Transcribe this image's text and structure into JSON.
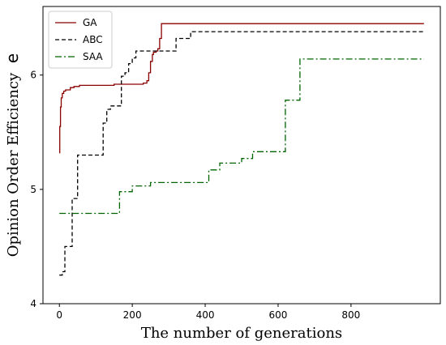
{
  "chart_data": {
    "type": "line",
    "xlabel": "The number of generations",
    "ylabel": "Opinion Order Efficiency",
    "ylabel_symbol": "e",
    "xlim": [
      -45,
      1045
    ],
    "ylim": [
      4.0,
      6.6
    ],
    "xticks": [
      0,
      200,
      400,
      600,
      800
    ],
    "yticks": [
      4,
      5,
      6
    ],
    "legend_position": "upper-left",
    "grid": false,
    "series": [
      {
        "name": "GA",
        "color": "#8b0000",
        "dash": "solid",
        "x": [
          0,
          1,
          3,
          5,
          8,
          12,
          17,
          22,
          30,
          40,
          55,
          70,
          100,
          150,
          200,
          230,
          240,
          245,
          250,
          255,
          258,
          265,
          270,
          275,
          280,
          1000
        ],
        "y": [
          5.32,
          5.55,
          5.72,
          5.8,
          5.84,
          5.86,
          5.87,
          5.87,
          5.89,
          5.9,
          5.91,
          5.91,
          5.91,
          5.92,
          5.92,
          5.93,
          5.95,
          6.02,
          6.12,
          6.18,
          6.2,
          6.21,
          6.23,
          6.32,
          6.45,
          6.45
        ]
      },
      {
        "name": "ABC",
        "color": "#000000",
        "dash": "5,3",
        "x": [
          0,
          8,
          15,
          25,
          35,
          50,
          100,
          120,
          130,
          140,
          160,
          170,
          180,
          190,
          200,
          210,
          225,
          270,
          300,
          320,
          340,
          360,
          370,
          1000
        ],
        "y": [
          4.25,
          4.28,
          4.5,
          4.5,
          4.92,
          5.3,
          5.3,
          5.58,
          5.7,
          5.73,
          5.73,
          5.99,
          6.02,
          6.1,
          6.15,
          6.21,
          6.21,
          6.21,
          6.21,
          6.32,
          6.32,
          6.38,
          6.38,
          6.38
        ]
      },
      {
        "name": "SAA",
        "color": "#006400",
        "dash": "8,3,2,3",
        "x": [
          0,
          165,
          200,
          250,
          400,
          410,
          440,
          500,
          530,
          610,
          620,
          650,
          660,
          1000
        ],
        "y": [
          4.79,
          4.98,
          5.03,
          5.06,
          5.06,
          5.17,
          5.23,
          5.27,
          5.33,
          5.33,
          5.78,
          5.78,
          6.14,
          6.14
        ]
      }
    ]
  }
}
